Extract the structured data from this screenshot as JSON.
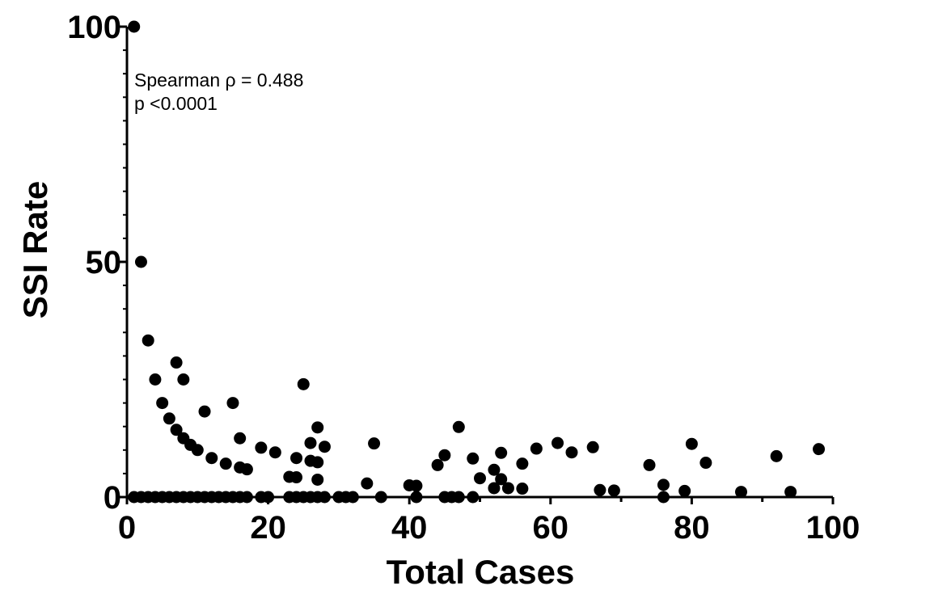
{
  "chart_data": {
    "type": "scatter",
    "xlabel": "Total Cases",
    "ylabel": "SSI Rate",
    "xlim": [
      0,
      100
    ],
    "ylim": [
      0,
      100
    ],
    "x_ticks": [
      "0",
      "20",
      "40",
      "60",
      "80",
      "100"
    ],
    "y_ticks": [
      "0",
      "50",
      "100"
    ],
    "annotations": [
      "Spearman ρ = 0.488",
      "p <0.0001"
    ],
    "grid": false,
    "marker_color": "#000000",
    "points": [
      [
        1,
        100
      ],
      [
        2,
        50
      ],
      [
        3,
        33.3
      ],
      [
        4,
        25
      ],
      [
        5,
        20
      ],
      [
        6,
        16.7
      ],
      [
        7,
        14.3
      ],
      [
        7,
        28.6
      ],
      [
        8,
        12.5
      ],
      [
        8,
        25
      ],
      [
        9,
        11.1
      ],
      [
        10,
        10
      ],
      [
        11,
        18.2
      ],
      [
        12,
        8.3
      ],
      [
        14,
        7.1
      ],
      [
        15,
        20
      ],
      [
        16,
        12.5
      ],
      [
        16,
        6.3
      ],
      [
        17,
        5.9
      ],
      [
        19,
        10.5
      ],
      [
        21,
        9.5
      ],
      [
        23,
        4.3
      ],
      [
        24,
        8.3
      ],
      [
        24,
        4.2
      ],
      [
        25,
        24
      ],
      [
        26,
        11.5
      ],
      [
        26,
        7.7
      ],
      [
        27,
        14.8
      ],
      [
        27,
        7.4
      ],
      [
        27,
        3.7
      ],
      [
        28,
        10.7
      ],
      [
        34,
        2.9
      ],
      [
        35,
        11.4
      ],
      [
        40,
        2.5
      ],
      [
        41,
        2.4
      ],
      [
        44,
        6.8
      ],
      [
        45,
        8.9
      ],
      [
        47,
        14.9
      ],
      [
        49,
        8.2
      ],
      [
        50,
        4
      ],
      [
        52,
        5.8
      ],
      [
        52,
        1.9
      ],
      [
        53,
        9.4
      ],
      [
        53,
        3.8
      ],
      [
        54,
        1.9
      ],
      [
        56,
        7.1
      ],
      [
        56,
        1.8
      ],
      [
        58,
        10.3
      ],
      [
        61,
        11.5
      ],
      [
        63,
        9.5
      ],
      [
        66,
        10.6
      ],
      [
        67,
        1.5
      ],
      [
        69,
        1.4
      ],
      [
        74,
        6.8
      ],
      [
        76,
        2.6
      ],
      [
        76,
        0
      ],
      [
        79,
        1.3
      ],
      [
        80,
        11.3
      ],
      [
        82,
        7.3
      ],
      [
        87,
        1.1
      ],
      [
        92,
        8.7
      ],
      [
        94,
        1.1
      ],
      [
        98,
        10.2
      ],
      [
        1,
        0
      ],
      [
        2,
        0
      ],
      [
        3,
        0
      ],
      [
        4,
        0
      ],
      [
        5,
        0
      ],
      [
        6,
        0
      ],
      [
        7,
        0
      ],
      [
        8,
        0
      ],
      [
        9,
        0
      ],
      [
        10,
        0
      ],
      [
        11,
        0
      ],
      [
        12,
        0
      ],
      [
        13,
        0
      ],
      [
        14,
        0
      ],
      [
        15,
        0
      ],
      [
        16,
        0
      ],
      [
        17,
        0
      ],
      [
        19,
        0
      ],
      [
        20,
        0
      ],
      [
        23,
        0
      ],
      [
        24,
        0
      ],
      [
        25,
        0
      ],
      [
        26,
        0
      ],
      [
        27,
        0
      ],
      [
        28,
        0
      ],
      [
        30,
        0
      ],
      [
        31,
        0
      ],
      [
        32,
        0
      ],
      [
        36,
        0
      ],
      [
        41,
        0
      ],
      [
        45,
        0
      ],
      [
        46,
        0
      ],
      [
        47,
        0
      ],
      [
        49,
        0
      ]
    ]
  }
}
